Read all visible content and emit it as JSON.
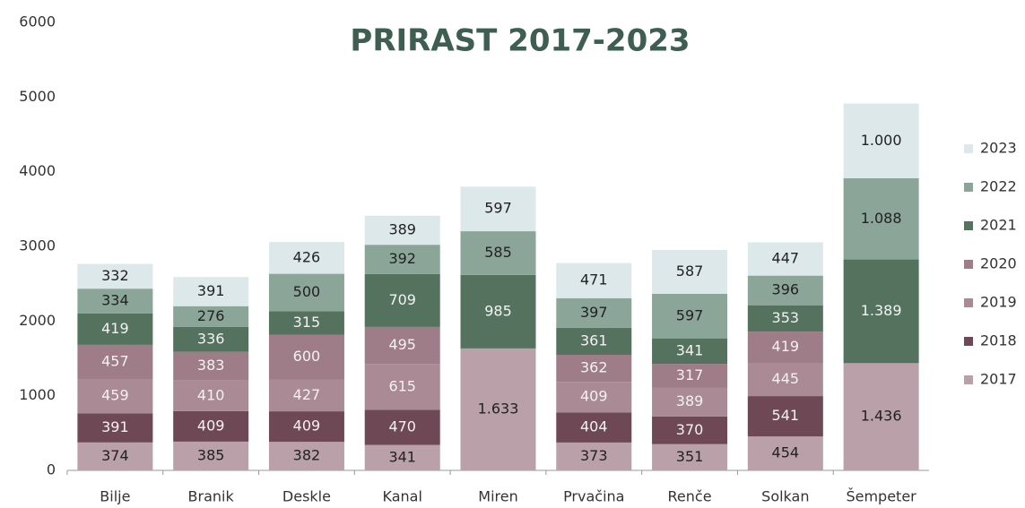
{
  "chart_data": {
    "type": "stacked_bar",
    "title": "PRIRAST 2017-2023",
    "categories": [
      "Bilje",
      "Branik",
      "Deskle",
      "Kanal",
      "Miren",
      "Prvačina",
      "Renče",
      "Solkan",
      "Šempeter"
    ],
    "series": [
      {
        "name": "2017",
        "color": "#b9a0a9",
        "values": [
          374,
          385,
          382,
          341,
          1633,
          373,
          351,
          454,
          1436
        ],
        "value_labels": [
          null,
          null,
          null,
          null,
          "1.633",
          null,
          null,
          null,
          "1.436"
        ]
      },
      {
        "name": "2018",
        "color": "#6e4855",
        "values": [
          391,
          409,
          409,
          470,
          null,
          404,
          370,
          541,
          null
        ]
      },
      {
        "name": "2019",
        "color": "#a98a95",
        "values": [
          459,
          410,
          427,
          615,
          null,
          409,
          389,
          445,
          null
        ]
      },
      {
        "name": "2020",
        "color": "#9e7d89",
        "values": [
          457,
          383,
          600,
          495,
          null,
          362,
          317,
          419,
          null
        ]
      },
      {
        "name": "2021",
        "color": "#55725f",
        "values": [
          419,
          336,
          315,
          709,
          985,
          361,
          341,
          353,
          1389
        ],
        "value_labels": [
          null,
          null,
          null,
          null,
          null,
          null,
          null,
          null,
          "1.389"
        ]
      },
      {
        "name": "2022",
        "color": "#8ba598",
        "values": [
          334,
          276,
          500,
          392,
          585,
          397,
          597,
          396,
          1088
        ],
        "value_labels": [
          null,
          null,
          null,
          null,
          null,
          null,
          null,
          null,
          "1.088"
        ]
      },
      {
        "name": "2023",
        "color": "#dde8ea",
        "values": [
          332,
          391,
          426,
          389,
          597,
          471,
          587,
          447,
          1000
        ],
        "value_labels": [
          null,
          null,
          null,
          null,
          null,
          null,
          null,
          null,
          "1.000"
        ]
      }
    ],
    "ylim": [
      0,
      6000
    ],
    "yticks": [
      0,
      1000,
      2000,
      3000,
      4000,
      5000,
      6000
    ],
    "grid": false,
    "legend": "right"
  }
}
